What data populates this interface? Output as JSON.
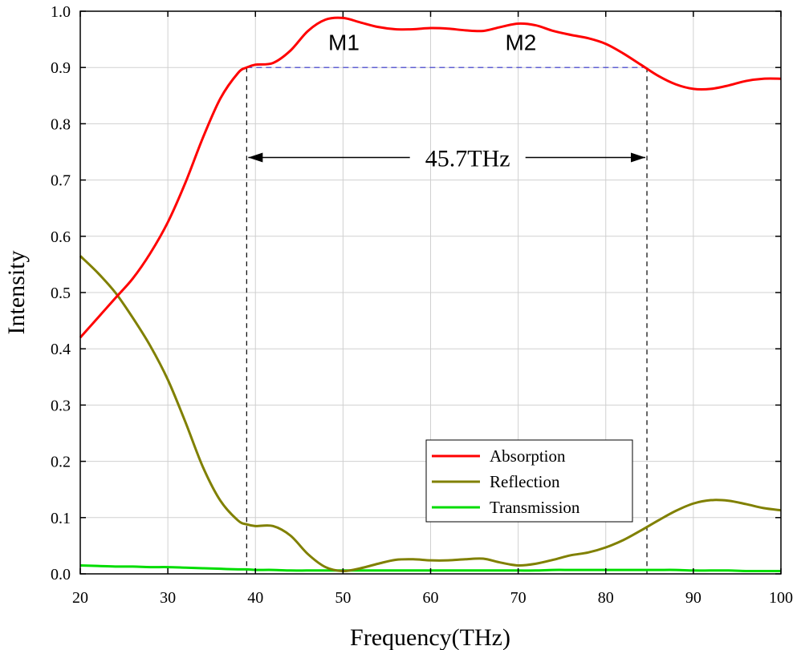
{
  "chart_data": {
    "type": "line",
    "title": "",
    "xlabel": "Frequency(THz)",
    "ylabel": "Intensity",
    "xlim": [
      20,
      100
    ],
    "ylim": [
      0,
      1.0
    ],
    "xticks": [
      "20",
      "30",
      "40",
      "50",
      "60",
      "70",
      "80",
      "90",
      "100"
    ],
    "yticks": [
      "0.0",
      "0.1",
      "0.2",
      "0.3",
      "0.4",
      "0.5",
      "0.6",
      "0.7",
      "0.8",
      "0.9",
      "1.0"
    ],
    "grid": true,
    "legend_position": "bottom-right",
    "x": [
      20,
      22,
      24,
      26,
      28,
      30,
      32,
      34,
      36,
      38,
      39,
      40,
      42,
      44,
      46,
      48,
      50,
      52,
      54,
      56,
      58,
      60,
      62,
      64,
      66,
      68,
      70,
      72,
      74,
      76,
      78,
      80,
      82,
      84,
      86,
      88,
      90,
      92,
      94,
      96,
      98,
      100
    ],
    "series": [
      {
        "name": "Absorption",
        "color": "#ff0000",
        "values": [
          0.42,
          0.455,
          0.49,
          0.525,
          0.57,
          0.625,
          0.695,
          0.775,
          0.845,
          0.89,
          0.9,
          0.905,
          0.908,
          0.93,
          0.965,
          0.985,
          0.988,
          0.98,
          0.972,
          0.968,
          0.968,
          0.97,
          0.969,
          0.966,
          0.965,
          0.972,
          0.978,
          0.975,
          0.965,
          0.958,
          0.952,
          0.942,
          0.925,
          0.905,
          0.885,
          0.87,
          0.862,
          0.862,
          0.868,
          0.876,
          0.88,
          0.88
        ]
      },
      {
        "name": "Reflection",
        "color": "#808000",
        "values": [
          0.565,
          0.535,
          0.5,
          0.455,
          0.405,
          0.345,
          0.27,
          0.19,
          0.13,
          0.095,
          0.088,
          0.085,
          0.085,
          0.068,
          0.035,
          0.012,
          0.005,
          0.01,
          0.018,
          0.025,
          0.026,
          0.024,
          0.024,
          0.026,
          0.027,
          0.02,
          0.015,
          0.018,
          0.025,
          0.033,
          0.038,
          0.047,
          0.06,
          0.077,
          0.095,
          0.112,
          0.125,
          0.131,
          0.13,
          0.124,
          0.117,
          0.113
        ]
      },
      {
        "name": "Transmission",
        "color": "#00dd00",
        "values": [
          0.015,
          0.014,
          0.013,
          0.013,
          0.012,
          0.012,
          0.011,
          0.01,
          0.009,
          0.008,
          0.008,
          0.007,
          0.007,
          0.006,
          0.006,
          0.006,
          0.006,
          0.006,
          0.006,
          0.006,
          0.006,
          0.006,
          0.006,
          0.006,
          0.006,
          0.006,
          0.006,
          0.006,
          0.007,
          0.007,
          0.007,
          0.007,
          0.007,
          0.007,
          0.007,
          0.007,
          0.006,
          0.006,
          0.006,
          0.005,
          0.005,
          0.005
        ]
      }
    ],
    "annotations": {
      "threshold_y": 0.9,
      "band_start_x": 39,
      "band_end_x": 84.7,
      "arrow_y": 0.74,
      "bandwidth_label": "45.7THz",
      "markers": [
        {
          "label": "M1",
          "x": 50.1,
          "y": 0.945
        },
        {
          "label": "M2",
          "x": 70.3,
          "y": 0.945
        }
      ]
    }
  }
}
